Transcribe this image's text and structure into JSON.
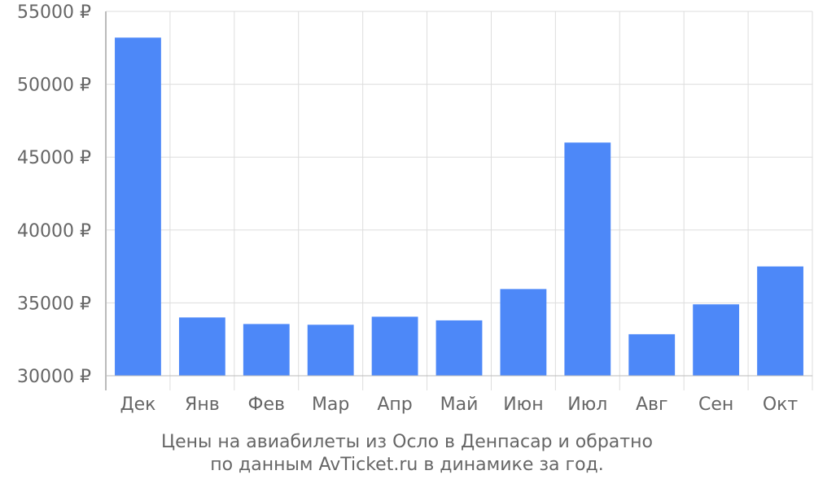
{
  "chart_data": {
    "type": "bar",
    "categories": [
      "Дек",
      "Янв",
      "Фев",
      "Мар",
      "Апр",
      "Май",
      "Июн",
      "Июл",
      "Авг",
      "Сен",
      "Окт"
    ],
    "values": [
      53200,
      34000,
      33550,
      33500,
      34050,
      33800,
      35950,
      46000,
      32850,
      34900,
      37500
    ],
    "ylim": [
      30000,
      55000
    ],
    "yticks": [
      30000,
      35000,
      40000,
      45000,
      50000,
      55000
    ],
    "ytick_labels": [
      "30000 ₽",
      "35000 ₽",
      "40000 ₽",
      "45000 ₽",
      "50000 ₽",
      "55000 ₽"
    ],
    "grid": true,
    "bar_color": "#4d88f8",
    "grid_color": "#dddddd",
    "axis_color": "#bbbbbb",
    "text_color": "#666666"
  },
  "caption": {
    "line1": "Цены на авиабилеты из Осло в Денпасар и обратно",
    "line2": "по данным AvTicket.ru в динамике за год."
  }
}
